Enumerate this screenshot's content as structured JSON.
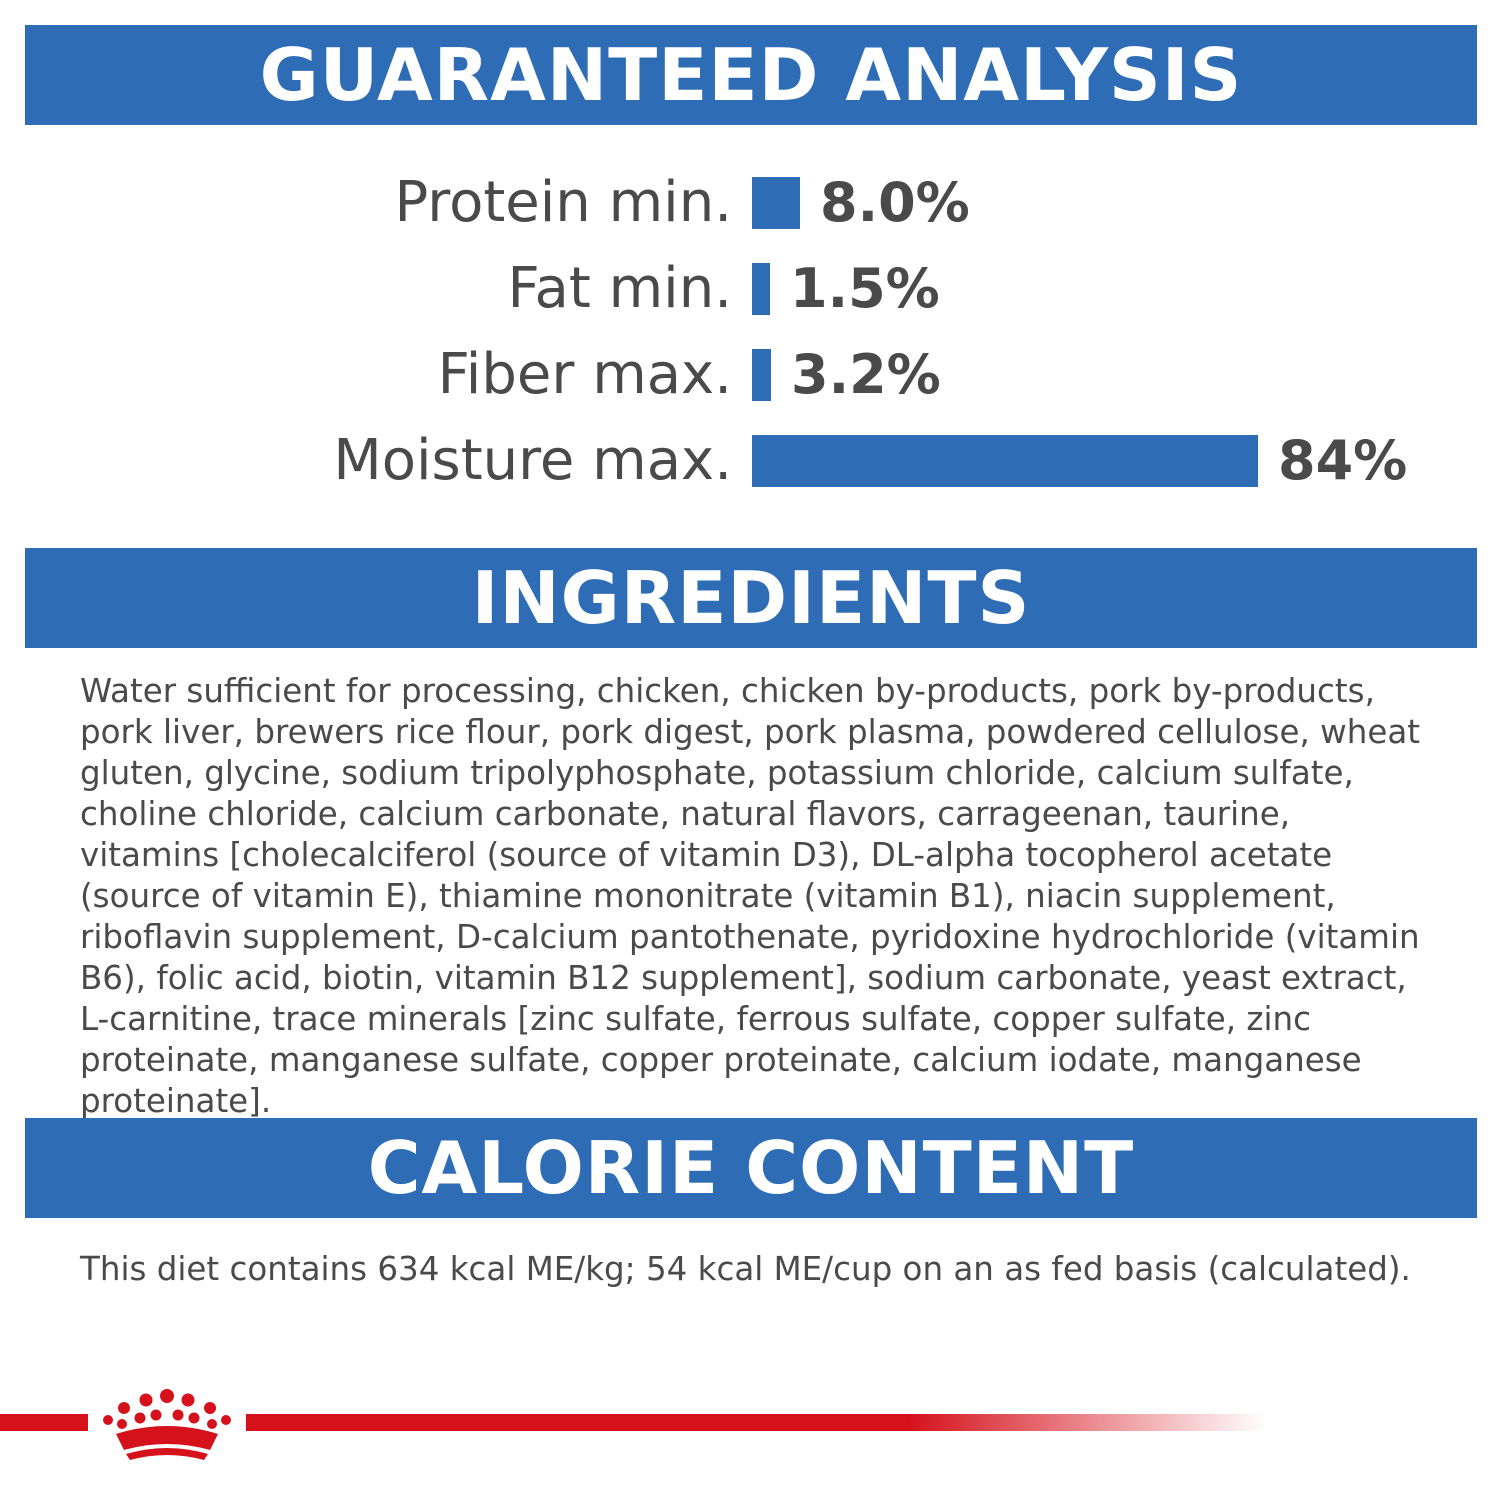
{
  "sections": {
    "guaranteed_analysis": "GUARANTEED ANALYSIS",
    "ingredients": "INGREDIENTS",
    "calorie_content": "CALORIE CONTENT"
  },
  "analysis": [
    {
      "label": "Protein min.",
      "value": "8.0%",
      "percent": 8.0
    },
    {
      "label": "Fat min.",
      "value": "1.5%",
      "percent": 1.5
    },
    {
      "label": "Fiber max.",
      "value": "3.2%",
      "percent": 3.2
    },
    {
      "label": "Moisture max.",
      "value": "84%",
      "percent": 84
    }
  ],
  "ingredients_text": "Water sufficient for processing, chicken, chicken by-products, pork by-products, pork liver, brewers rice flour, pork digest, pork plasma, powdered cellulose, wheat gluten, glycine, sodium tripolyphosphate, potassium chloride, calcium sulfate, choline chloride, calcium carbonate, natural flavors, carrageenan, taurine, vitamins [cholecalciferol (source of vitamin D3), DL-alpha tocopherol acetate (source of vitamin E), thiamine mononitrate (vitamin B1), niacin supplement, riboflavin supplement, D-calcium pantothenate, pyridoxine hydrochloride (vitamin B6), folic acid, biotin, vitamin B12 supplement], sodium carbonate, yeast extract, L-carnitine, trace minerals [zinc sulfate, ferrous sulfate, copper sulfate, zinc proteinate, manganese sulfate, copper proteinate, calcium iodate, manganese proteinate].",
  "calorie_text": "This diet contains 634 kcal ME/kg; 54 kcal ME/cup on an as fed basis (calculated).",
  "colors": {
    "band_blue": "#2e6db6",
    "text_gray": "#4a4a4a",
    "brand_red": "#d5121b"
  },
  "icons": {
    "brand_logo": "crown-icon"
  }
}
